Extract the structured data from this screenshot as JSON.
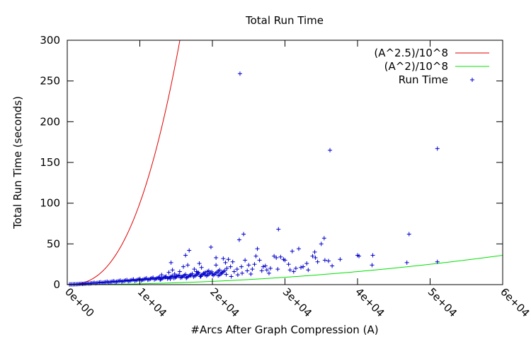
{
  "chart_data": {
    "type": "scatter",
    "title": "Total Run Time",
    "xlabel": "#Arcs After Graph Compression (A)",
    "ylabel": "Total Run Time (seconds)",
    "xlim": [
      0,
      60000
    ],
    "ylim": [
      0,
      300
    ],
    "x_ticks": [
      {
        "value": 0,
        "label": "0e+00"
      },
      {
        "value": 10000,
        "label": "1e+04"
      },
      {
        "value": 20000,
        "label": "2e+04"
      },
      {
        "value": 30000,
        "label": "3e+04"
      },
      {
        "value": 40000,
        "label": "4e+04"
      },
      {
        "value": 50000,
        "label": "5e+04"
      },
      {
        "value": 60000,
        "label": "6e+04"
      }
    ],
    "y_ticks": [
      {
        "value": 0,
        "label": "0"
      },
      {
        "value": 50,
        "label": "50"
      },
      {
        "value": 100,
        "label": "100"
      },
      {
        "value": 150,
        "label": "150"
      },
      {
        "value": 200,
        "label": "200"
      },
      {
        "value": 250,
        "label": "250"
      },
      {
        "value": 300,
        "label": "300"
      }
    ],
    "grid": false,
    "legend_position": "top-right",
    "series": [
      {
        "name": "(A^2.5)/10^8",
        "kind": "function",
        "exponent": 2.5,
        "divisor": 100000000,
        "color": "#e00000"
      },
      {
        "name": "(A^2)/10^8",
        "kind": "function",
        "exponent": 2,
        "divisor": 100000000,
        "color": "#00e000"
      },
      {
        "name": "Run Time",
        "kind": "points",
        "marker": "+",
        "color": "#0000cc",
        "points": [
          [
            23800,
            259
          ],
          [
            36200,
            165
          ],
          [
            51000,
            167
          ],
          [
            47100,
            62
          ],
          [
            24300,
            62
          ],
          [
            29100,
            68
          ],
          [
            35400,
            57
          ],
          [
            35000,
            50
          ],
          [
            34100,
            40
          ],
          [
            31900,
            44
          ],
          [
            31000,
            41
          ],
          [
            26200,
            44
          ],
          [
            19800,
            46
          ],
          [
            23700,
            55
          ],
          [
            16800,
            42
          ],
          [
            16300,
            36
          ],
          [
            14300,
            27
          ],
          [
            21500,
            32
          ],
          [
            22500,
            22
          ],
          [
            33800,
            35
          ],
          [
            34200,
            33
          ],
          [
            37600,
            31
          ],
          [
            40000,
            36
          ],
          [
            40200,
            35
          ],
          [
            42100,
            36
          ],
          [
            42000,
            24
          ],
          [
            46800,
            27
          ],
          [
            51000,
            28
          ],
          [
            28500,
            35
          ],
          [
            29400,
            34
          ],
          [
            30000,
            30
          ],
          [
            27000,
            22
          ],
          [
            25000,
            24
          ],
          [
            24500,
            30
          ],
          [
            26000,
            35
          ],
          [
            21000,
            18
          ],
          [
            20500,
            24
          ],
          [
            19500,
            17
          ],
          [
            18500,
            21
          ],
          [
            17500,
            19
          ],
          [
            18000,
            15
          ],
          [
            15500,
            16
          ],
          [
            16000,
            22
          ],
          [
            14800,
            13
          ],
          [
            14500,
            18
          ],
          [
            32500,
            22
          ],
          [
            33000,
            26
          ],
          [
            34500,
            28
          ],
          [
            35500,
            30
          ],
          [
            31500,
            20
          ],
          [
            30500,
            25
          ],
          [
            28000,
            20
          ],
          [
            27500,
            18
          ],
          [
            25500,
            19
          ],
          [
            23000,
            16
          ],
          [
            22000,
            20
          ],
          [
            24000,
            22
          ],
          [
            20000,
            13
          ],
          [
            19000,
            12
          ],
          [
            17000,
            11
          ],
          [
            13500,
            9
          ],
          [
            14000,
            15
          ],
          [
            12800,
            6
          ],
          [
            15000,
            10
          ],
          [
            18800,
            14
          ],
          [
            21800,
            27
          ],
          [
            26800,
            17
          ],
          [
            29800,
            31
          ],
          [
            33200,
            18
          ],
          [
            36000,
            29
          ],
          [
            22800,
            28
          ],
          [
            24800,
            17
          ],
          [
            27800,
            14
          ],
          [
            31200,
            16
          ],
          [
            25800,
            25
          ],
          [
            20500,
            33
          ],
          [
            22200,
            31
          ],
          [
            18200,
            26
          ],
          [
            16600,
            24
          ],
          [
            23400,
            19
          ],
          [
            28800,
            33
          ],
          [
            26500,
            30
          ],
          [
            24100,
            14
          ],
          [
            21300,
            15
          ],
          [
            19300,
            16
          ],
          [
            17800,
            16
          ],
          [
            15800,
            9
          ],
          [
            13000,
            12
          ],
          [
            29000,
            19
          ],
          [
            25300,
            13
          ],
          [
            36500,
            23
          ],
          [
            32200,
            21
          ],
          [
            30700,
            18
          ],
          [
            27300,
            23
          ],
          [
            23500,
            12
          ],
          [
            20800,
            11
          ],
          [
            18400,
            10
          ],
          [
            16400,
            8
          ],
          [
            14200,
            7
          ],
          [
            22600,
            10
          ]
        ]
      }
    ]
  }
}
